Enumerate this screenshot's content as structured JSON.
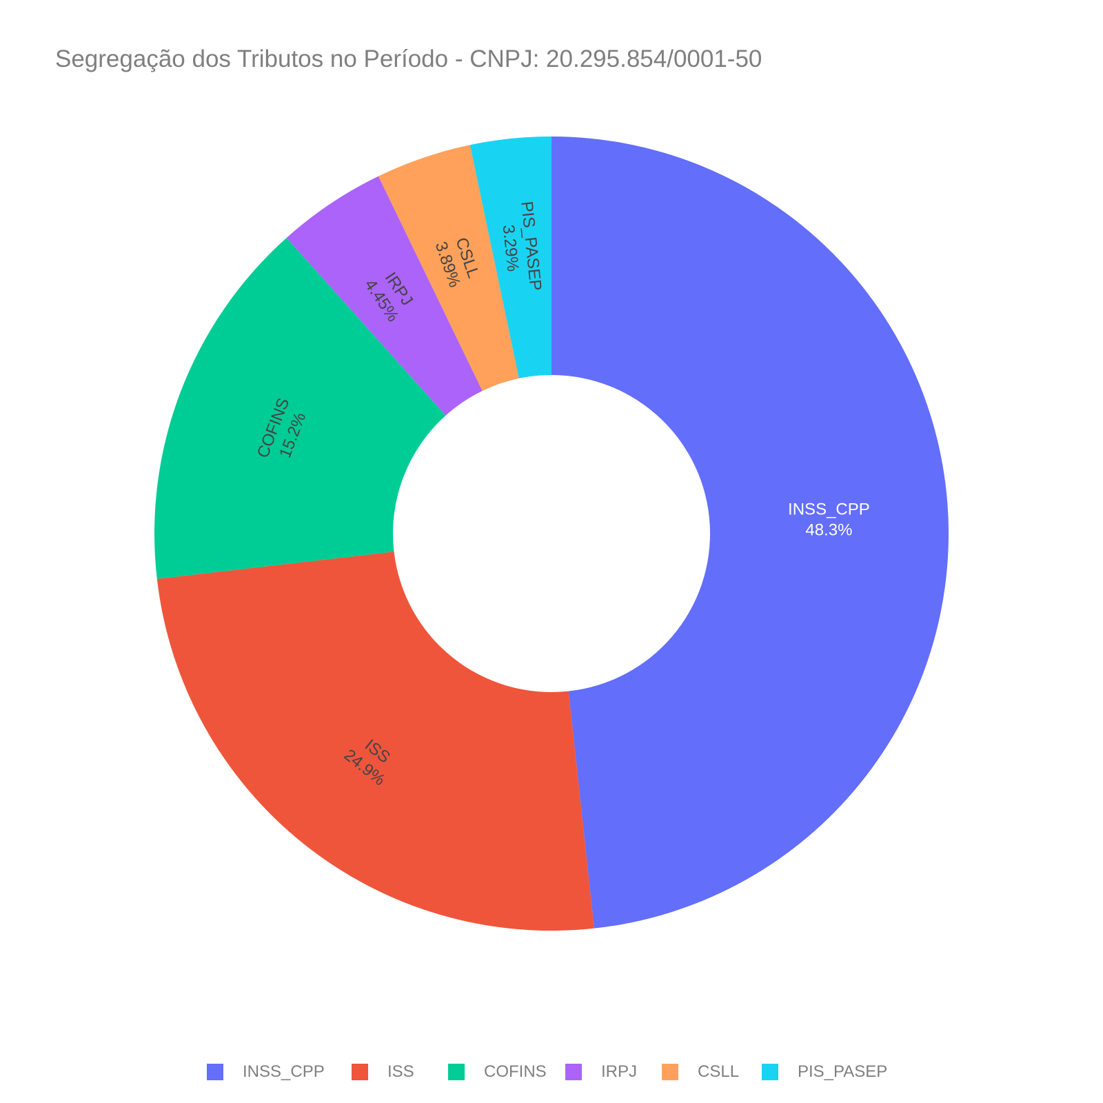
{
  "chart_data": {
    "type": "pie",
    "hole": true,
    "title": "Segregação dos Tributos no Período - CNPJ: 20.295.854/0001-50",
    "slices": [
      {
        "label": "INSS_CPP",
        "value": 48.3,
        "display": "48.3%",
        "color": "#636efa",
        "text_color": "#ffffff"
      },
      {
        "label": "ISS",
        "value": 24.9,
        "display": "24.9%",
        "color": "#ef553b",
        "text_color": "#444444"
      },
      {
        "label": "COFINS",
        "value": 15.2,
        "display": "15.2%",
        "color": "#00cc96",
        "text_color": "#444444"
      },
      {
        "label": "IRPJ",
        "value": 4.45,
        "display": "4.45%",
        "color": "#ab63fa",
        "text_color": "#444444"
      },
      {
        "label": "CSLL",
        "value": 3.89,
        "display": "3.89%",
        "color": "#ffa15a",
        "text_color": "#444444"
      },
      {
        "label": "PIS_PASEP",
        "value": 3.29,
        "display": "3.29%",
        "color": "#19d3f3",
        "text_color": "#444444"
      }
    ],
    "legend": {
      "placement": "bottom",
      "items": [
        "INSS_CPP",
        "ISS",
        "COFINS",
        "IRPJ",
        "CSLL",
        "PIS_PASEP"
      ]
    }
  }
}
